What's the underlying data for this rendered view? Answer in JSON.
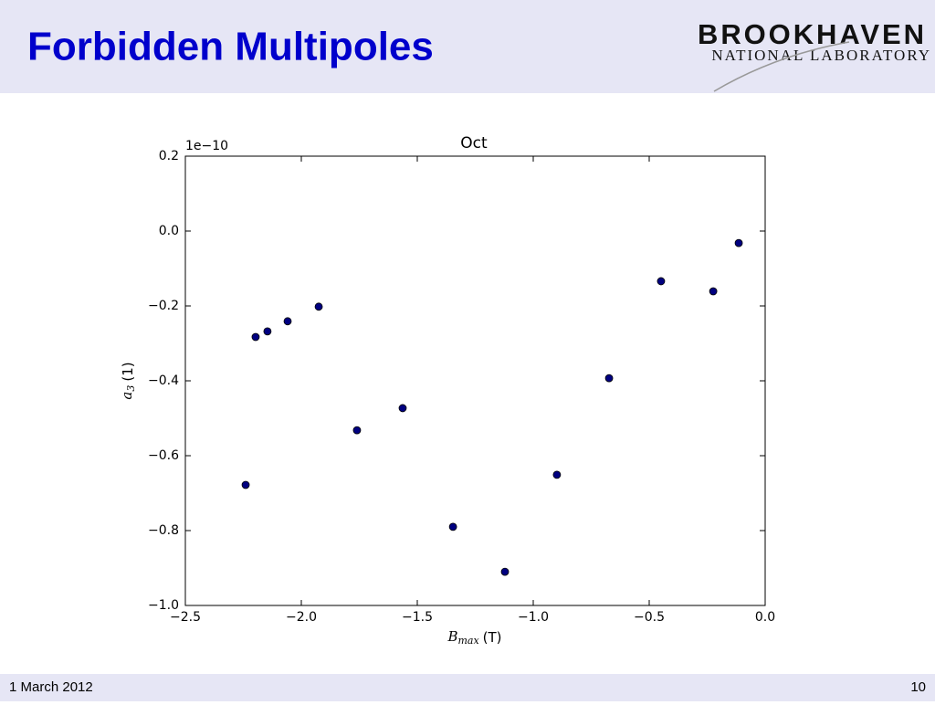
{
  "slide": {
    "title": "Forbidden Multipoles",
    "footer_date": "1 March 2012",
    "page_number": "10"
  },
  "logo": {
    "name": "BROOKHAVEN",
    "subtitle": "NATIONAL LABORATORY"
  },
  "chart_data": {
    "type": "scatter",
    "title": "Oct",
    "y_offset_label": "1e−10",
    "x_label_symbol": "B",
    "x_label_subscript": "max",
    "x_label_unit": "(T)",
    "y_label_symbol": "a",
    "y_label_subscript": "3",
    "y_label_unit": "(1)",
    "color": "#000080",
    "x": [
      -2.24,
      -2.197,
      -2.146,
      -2.059,
      -1.925,
      -1.76,
      -1.563,
      -1.346,
      -1.122,
      -0.898,
      -0.673,
      -0.449,
      -0.224,
      -0.114
    ],
    "values": [
      -0.678,
      -0.283,
      -0.268,
      -0.241,
      -0.202,
      -0.532,
      -0.473,
      -0.79,
      -0.91,
      -0.651,
      -0.393,
      -0.134,
      -0.161,
      -0.032
    ],
    "xlim": [
      -2.5,
      0
    ],
    "ylim": [
      -1.0,
      0.2
    ],
    "xticks": [
      {
        "value": -2.5,
        "label": "−2.5"
      },
      {
        "value": -2.0,
        "label": "−2.0"
      },
      {
        "value": -1.5,
        "label": "−1.5"
      },
      {
        "value": -1.0,
        "label": "−1.0"
      },
      {
        "value": -0.5,
        "label": "−0.5"
      },
      {
        "value": 0,
        "label": "0.0"
      }
    ],
    "yticks": [
      0.2,
      {
        "value": 0,
        "label": "0.0"
      },
      {
        "value": -0.2,
        "label": "−0.2"
      },
      {
        "value": -0.4,
        "label": "−0.4"
      },
      {
        "value": -0.6,
        "label": "−0.6"
      },
      {
        "value": -0.8,
        "label": "−0.8"
      },
      {
        "value": -1.0,
        "label": "−1.0"
      }
    ]
  }
}
